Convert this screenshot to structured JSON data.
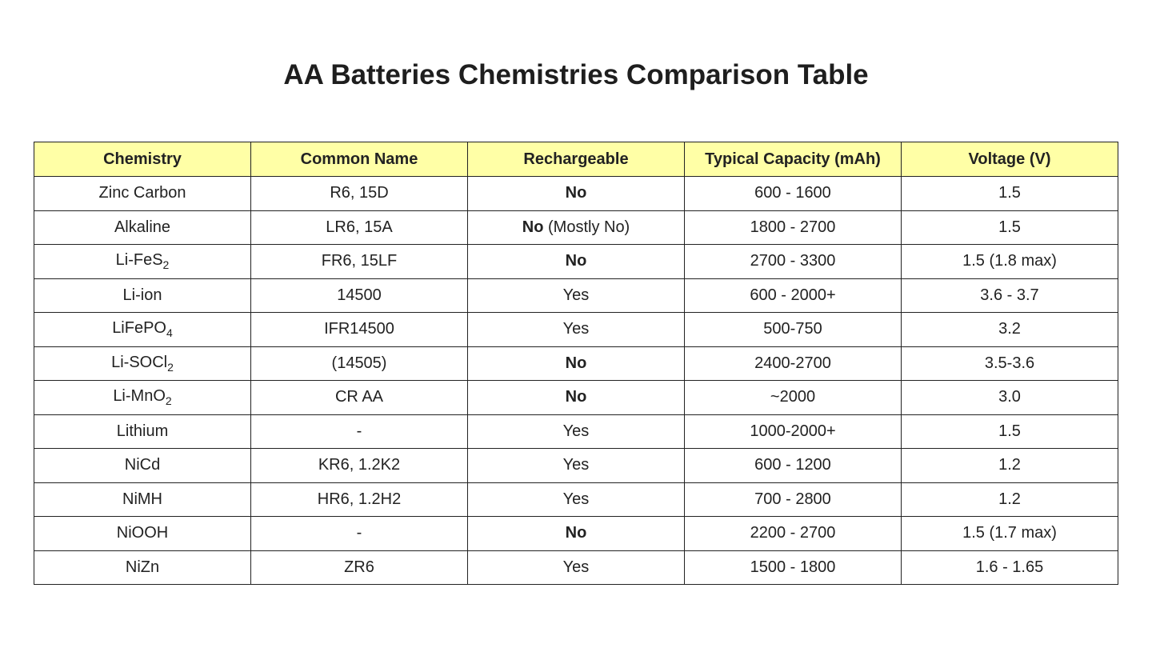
{
  "header": {
    "title": "AA Batteries Chemistries Comparison Table"
  },
  "table": {
    "header_color": "#ffffa6",
    "columns": [
      "Chemistry",
      "Common Name",
      "Rechargeable",
      "Typical Capacity (mAh)",
      "Voltage (V)"
    ],
    "rows": [
      [
        "Zinc Carbon",
        "R6, 15D",
        [
          {
            "text": "No",
            "format": "bold"
          }
        ],
        "600 - 1600",
        "1.5"
      ],
      [
        "Alkaline",
        "LR6, 15A",
        [
          {
            "text": "No",
            "format": "bold"
          },
          {
            "text": " (Mostly No)"
          }
        ],
        "1800 - 2700",
        "1.5"
      ],
      [
        [
          {
            "text": "Li-FeS"
          },
          {
            "text": "2",
            "format": "sub"
          }
        ],
        "FR6, 15LF",
        [
          {
            "text": "No",
            "format": "bold"
          }
        ],
        "2700 - 3300",
        "1.5 (1.8 max)"
      ],
      [
        "Li-ion",
        "14500",
        "Yes",
        "600 - 2000+",
        "3.6 - 3.7"
      ],
      [
        [
          {
            "text": "LiFePO"
          },
          {
            "text": "4",
            "format": "sub"
          }
        ],
        "IFR14500",
        "Yes",
        "500-750",
        "3.2"
      ],
      [
        [
          {
            "text": "Li-SOCl"
          },
          {
            "text": "2",
            "format": "sub"
          }
        ],
        "(14505)",
        [
          {
            "text": "No",
            "format": "bold"
          }
        ],
        "2400-2700",
        "3.5-3.6"
      ],
      [
        [
          {
            "text": "Li-MnO"
          },
          {
            "text": "2",
            "format": "sub"
          }
        ],
        "CR AA",
        [
          {
            "text": "No",
            "format": "bold"
          }
        ],
        "~2000",
        "3.0"
      ],
      [
        "Lithium",
        "-",
        "Yes",
        "1000-2000+",
        "1.5"
      ],
      [
        "NiCd",
        "KR6, 1.2K2",
        "Yes",
        "600 - 1200",
        "1.2"
      ],
      [
        "NiMH",
        "HR6, 1.2H2",
        "Yes",
        "700 - 2800",
        "1.2"
      ],
      [
        "NiOOH",
        "-",
        [
          {
            "text": "No",
            "format": "bold"
          }
        ],
        "2200 - 2700",
        "1.5 (1.7 max)"
      ],
      [
        "NiZn",
        "ZR6",
        "Yes",
        "1500 - 1800",
        "1.6 - 1.65"
      ]
    ]
  }
}
